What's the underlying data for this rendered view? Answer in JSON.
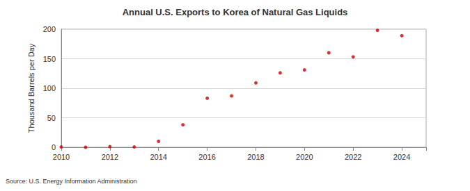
{
  "chart_data": {
    "type": "scatter",
    "title": "Annual U.S. Exports to Korea of Natural Gas Liquids",
    "y_label": "Thousand Barrels per Day",
    "annotations": [
      "Source: U.S. Energy Information Administration"
    ],
    "x": [
      2010,
      2011,
      2012,
      2013,
      2014,
      2015,
      2016,
      2017,
      2018,
      2019,
      2020,
      2021,
      2022,
      2023,
      2024
    ],
    "values": [
      0.5,
      0,
      1,
      0.5,
      10,
      38,
      83,
      87,
      109,
      126,
      131,
      160,
      153,
      198,
      189
    ],
    "color": "#cc0000",
    "marker": "circle",
    "xlim": [
      2010,
      2025
    ],
    "xticks": [
      2010,
      2012,
      2014,
      2016,
      2018,
      2020,
      2022,
      2024
    ],
    "ylim": [
      0,
      200
    ],
    "yticks": [
      0,
      50,
      100,
      150,
      200
    ],
    "grid": true
  }
}
